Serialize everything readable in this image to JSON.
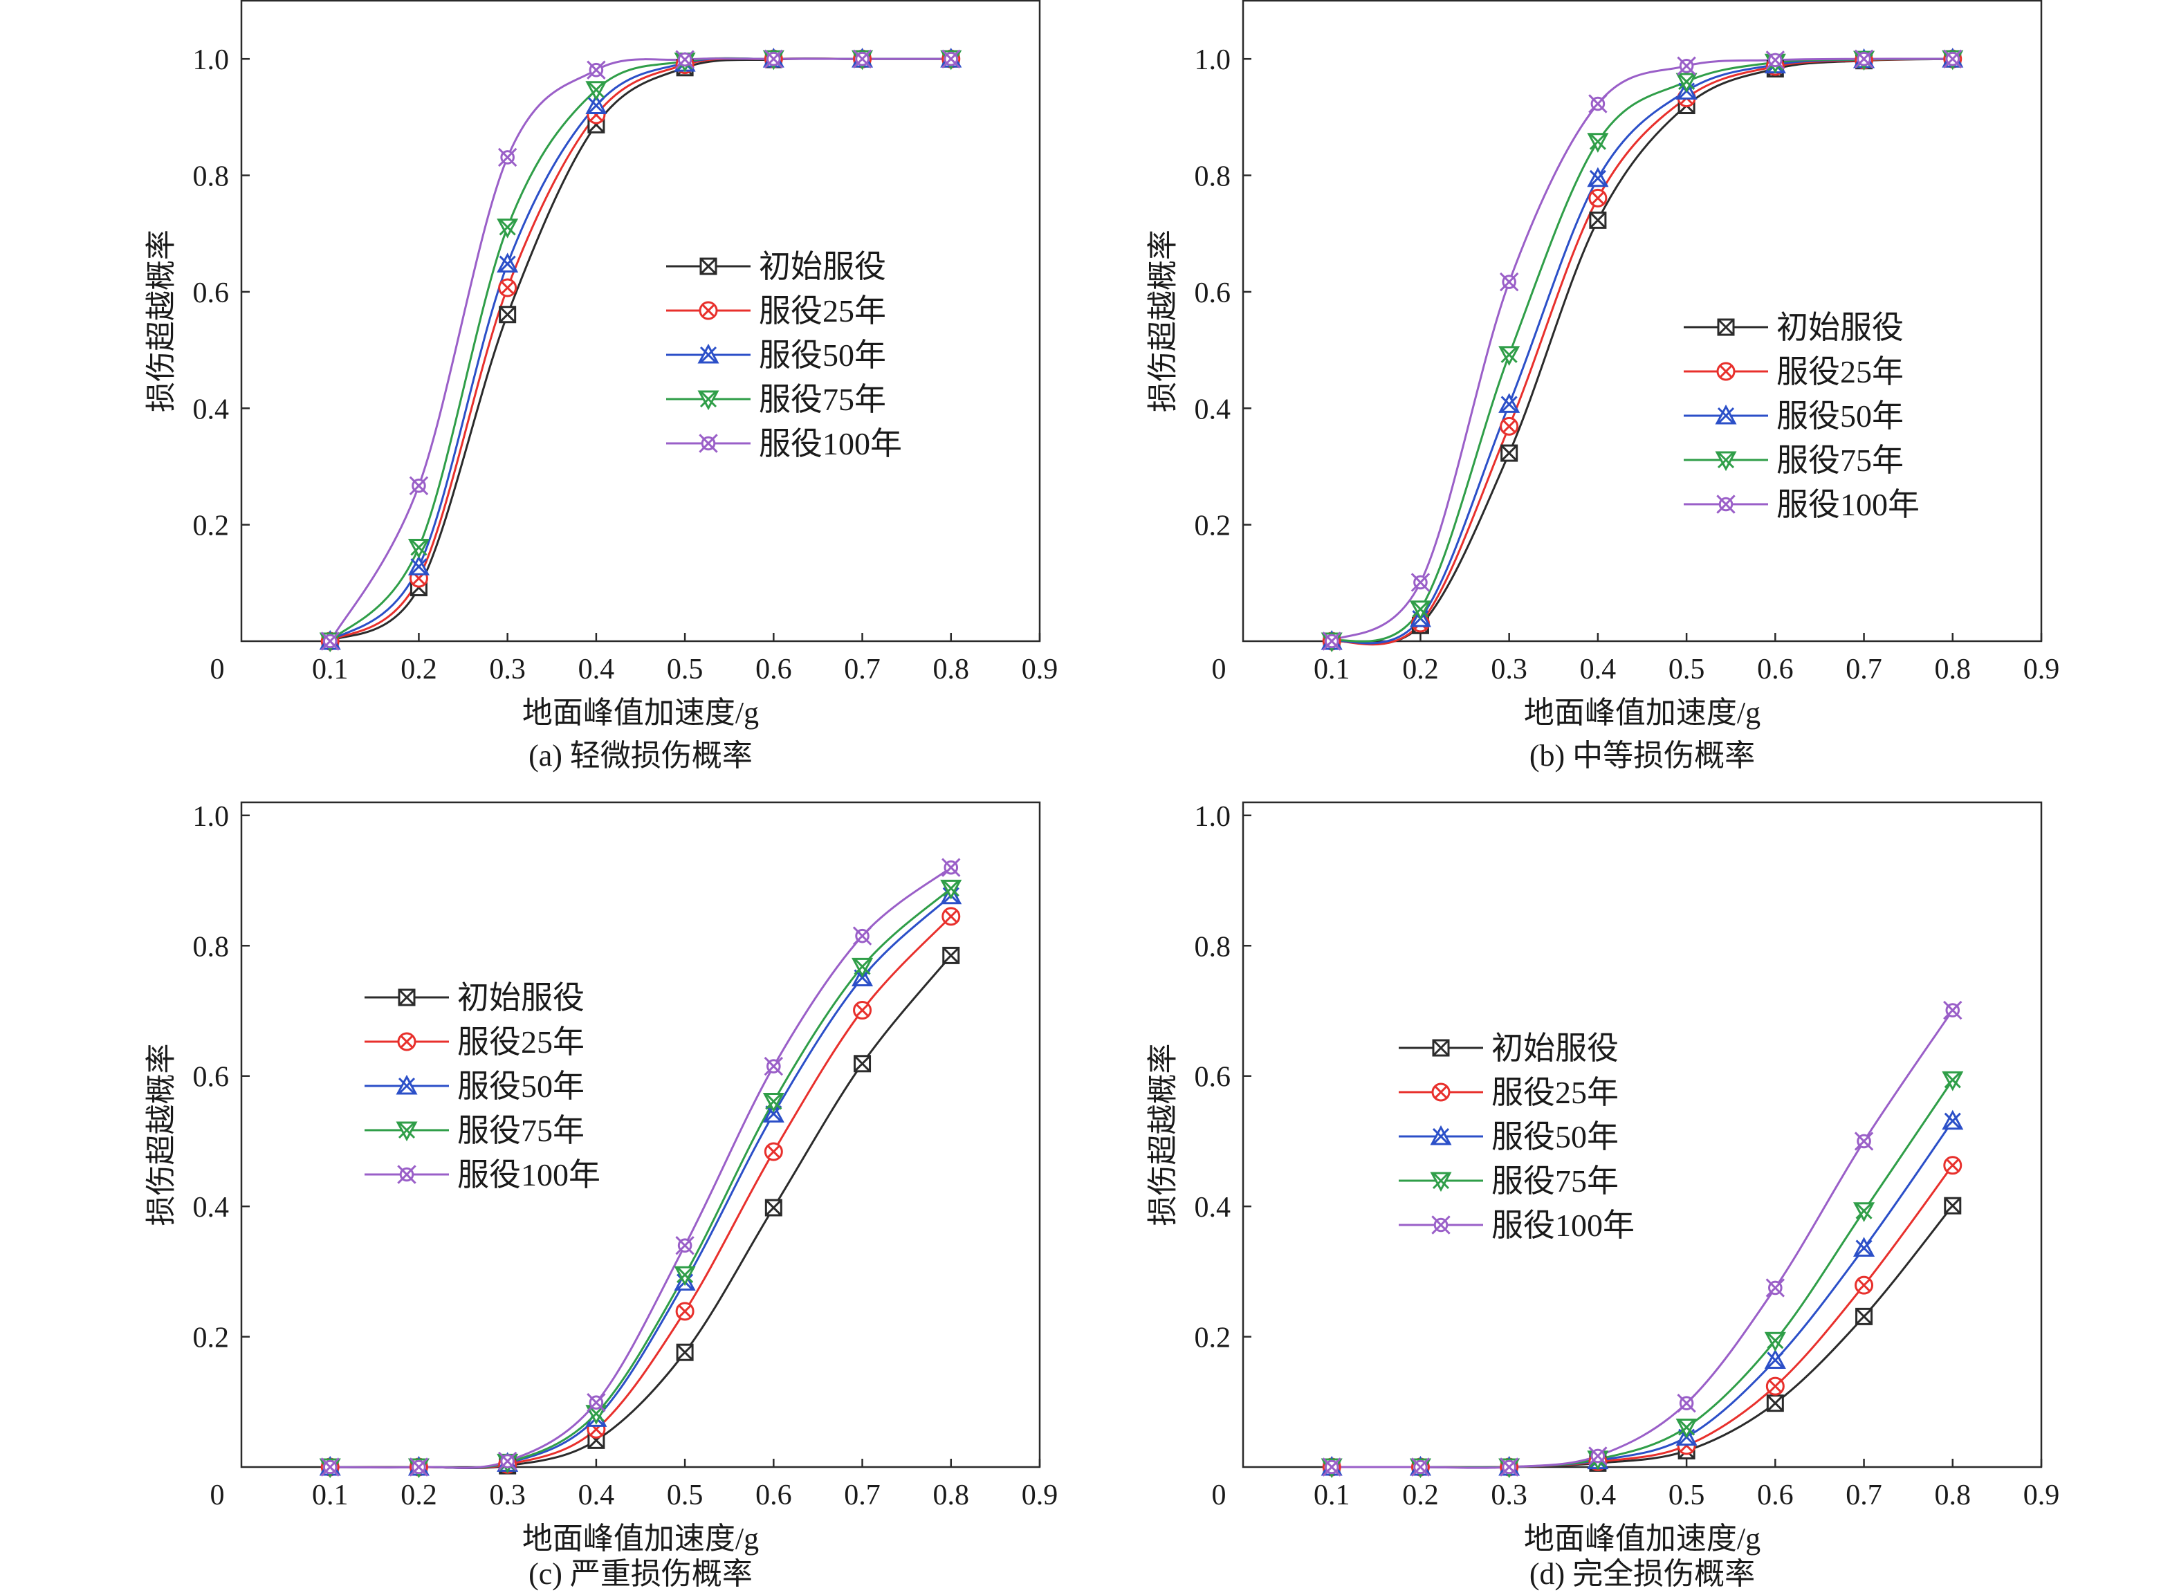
{
  "chart_data": [
    {
      "type": "line",
      "caption": "(a) 轻微损伤概率",
      "xlabel": "地面峰值加速度/g",
      "ylabel": "损伤超越概率",
      "xlim": [
        0,
        0.9
      ],
      "ylim": [
        0,
        1.1
      ],
      "grid": false,
      "legend": "center-right",
      "origin_label": "0",
      "xticks": [
        "0.1",
        "0.2",
        "0.3",
        "0.4",
        "0.5",
        "0.6",
        "0.7",
        "0.8",
        "0.9"
      ],
      "yticks": [
        "0.2",
        "0.4",
        "0.6",
        "0.8",
        "1.0"
      ],
      "x": [
        0.1,
        0.2,
        0.3,
        0.4,
        0.5,
        0.6,
        0.7,
        0.8
      ],
      "series": [
        {
          "name": "初始服役",
          "color": "#2b2b2b",
          "marker": "square-x",
          "values": [
            0.0,
            0.092,
            0.561,
            0.887,
            0.985,
            0.999,
            1.0,
            1.0
          ]
        },
        {
          "name": "服役25年",
          "color": "#e8302c",
          "marker": "circle-x",
          "values": [
            0.0,
            0.108,
            0.607,
            0.904,
            0.99,
            1.0,
            1.0,
            1.0
          ]
        },
        {
          "name": "服役50年",
          "color": "#2b4fc8",
          "marker": "triangle-x",
          "values": [
            0.0,
            0.128,
            0.648,
            0.92,
            0.993,
            1.0,
            1.0,
            1.0
          ]
        },
        {
          "name": "服役75年",
          "color": "#2f9e48",
          "marker": "triangle-down-x",
          "values": [
            0.0,
            0.161,
            0.711,
            0.947,
            0.996,
            1.0,
            1.0,
            1.0
          ]
        },
        {
          "name": "服役100年",
          "color": "#9a5fc8",
          "marker": "circle-cross-x",
          "values": [
            0.0,
            0.267,
            0.831,
            0.981,
            0.999,
            1.0,
            1.0,
            1.0
          ]
        }
      ]
    },
    {
      "type": "line",
      "caption": "(b) 中等损伤概率",
      "xlabel": "地面峰值加速度/g",
      "ylabel": "损伤超越概率",
      "xlim": [
        0,
        0.9
      ],
      "ylim": [
        0,
        1.1
      ],
      "grid": false,
      "legend": "center-right",
      "origin_label": "0",
      "xticks": [
        "0.1",
        "0.2",
        "0.3",
        "0.4",
        "0.5",
        "0.6",
        "0.7",
        "0.8",
        "0.9"
      ],
      "yticks": [
        "0.2",
        "0.4",
        "0.6",
        "0.8",
        "1.0"
      ],
      "x": [
        0.1,
        0.2,
        0.3,
        0.4,
        0.5,
        0.6,
        0.7,
        0.8
      ],
      "series": [
        {
          "name": "初始服役",
          "color": "#2b2b2b",
          "marker": "square-x",
          "values": [
            0.0,
            0.027,
            0.323,
            0.723,
            0.92,
            0.983,
            0.997,
            1.0
          ]
        },
        {
          "name": "服役25年",
          "color": "#e8302c",
          "marker": "circle-x",
          "values": [
            0.0,
            0.031,
            0.369,
            0.761,
            0.933,
            0.987,
            0.998,
            1.0
          ]
        },
        {
          "name": "服役50年",
          "color": "#2b4fc8",
          "marker": "triangle-x",
          "values": [
            0.0,
            0.039,
            0.407,
            0.795,
            0.945,
            0.99,
            0.999,
            1.0
          ]
        },
        {
          "name": "服役75年",
          "color": "#2f9e48",
          "marker": "triangle-down-x",
          "values": [
            0.0,
            0.055,
            0.492,
            0.858,
            0.961,
            0.994,
            0.999,
            1.0
          ]
        },
        {
          "name": "服役100年",
          "color": "#9a5fc8",
          "marker": "circle-cross-x",
          "values": [
            0.0,
            0.101,
            0.617,
            0.923,
            0.988,
            0.998,
            1.0,
            1.0
          ]
        }
      ]
    },
    {
      "type": "line",
      "caption": "(c) 严重损伤概率",
      "xlabel": "地面峰值加速度/g",
      "ylabel": "损伤超越概率",
      "xlim": [
        0,
        0.9
      ],
      "ylim": [
        0,
        1.02
      ],
      "grid": false,
      "legend": "center-left",
      "origin_label": "0",
      "xticks": [
        "0.1",
        "0.2",
        "0.3",
        "0.4",
        "0.5",
        "0.6",
        "0.7",
        "0.8",
        "0.9"
      ],
      "yticks": [
        "0.2",
        "0.4",
        "0.6",
        "0.8",
        "1.0"
      ],
      "x": [
        0.1,
        0.2,
        0.3,
        0.4,
        0.5,
        0.6,
        0.7,
        0.8
      ],
      "series": [
        {
          "name": "初始服役",
          "color": "#2b2b2b",
          "marker": "square-x",
          "values": [
            0.0,
            0.0,
            0.002,
            0.041,
            0.176,
            0.398,
            0.619,
            0.785
          ]
        },
        {
          "name": "服役25年",
          "color": "#e8302c",
          "marker": "circle-x",
          "values": [
            0.0,
            0.0,
            0.004,
            0.058,
            0.239,
            0.484,
            0.701,
            0.845
          ]
        },
        {
          "name": "服役50年",
          "color": "#2b4fc8",
          "marker": "triangle-x",
          "values": [
            0.0,
            0.0,
            0.006,
            0.075,
            0.284,
            0.542,
            0.751,
            0.877
          ]
        },
        {
          "name": "服役75年",
          "color": "#2f9e48",
          "marker": "triangle-down-x",
          "values": [
            0.0,
            0.0,
            0.007,
            0.082,
            0.295,
            0.561,
            0.768,
            0.888
          ]
        },
        {
          "name": "服役100年",
          "color": "#9a5fc8",
          "marker": "circle-cross-x",
          "values": [
            0.0,
            0.0,
            0.009,
            0.099,
            0.34,
            0.615,
            0.815,
            0.92
          ]
        }
      ]
    },
    {
      "type": "line",
      "caption": "(d) 完全损伤概率",
      "xlabel": "地面峰值加速度/g",
      "ylabel": "损伤超越概率",
      "xlim": [
        0,
        0.9
      ],
      "ylim": [
        0,
        1.02
      ],
      "grid": false,
      "legend": "center",
      "origin_label": "0",
      "xticks": [
        "0.1",
        "0.2",
        "0.3",
        "0.4",
        "0.5",
        "0.6",
        "0.7",
        "0.8",
        "0.9"
      ],
      "yticks": [
        "0.2",
        "0.4",
        "0.6",
        "0.8",
        "1.0"
      ],
      "x": [
        0.1,
        0.2,
        0.3,
        0.4,
        0.5,
        0.6,
        0.7,
        0.8
      ],
      "series": [
        {
          "name": "初始服役",
          "color": "#2b2b2b",
          "marker": "square-x",
          "values": [
            0.0,
            0.0,
            0.0,
            0.006,
            0.025,
            0.098,
            0.231,
            0.401
          ]
        },
        {
          "name": "服役25年",
          "color": "#e8302c",
          "marker": "circle-x",
          "values": [
            0.0,
            0.0,
            0.0,
            0.008,
            0.033,
            0.124,
            0.279,
            0.463
          ]
        },
        {
          "name": "服役50年",
          "color": "#2b4fc8",
          "marker": "triangle-x",
          "values": [
            0.0,
            0.0,
            0.0,
            0.01,
            0.046,
            0.164,
            0.336,
            0.531
          ]
        },
        {
          "name": "服役75年",
          "color": "#2f9e48",
          "marker": "triangle-down-x",
          "values": [
            0.0,
            0.0,
            0.0,
            0.012,
            0.061,
            0.194,
            0.393,
            0.594
          ]
        },
        {
          "name": "服役100年",
          "color": "#9a5fc8",
          "marker": "circle-cross-x",
          "values": [
            0.0,
            0.0,
            0.0,
            0.017,
            0.098,
            0.275,
            0.5,
            0.701
          ]
        }
      ]
    }
  ]
}
